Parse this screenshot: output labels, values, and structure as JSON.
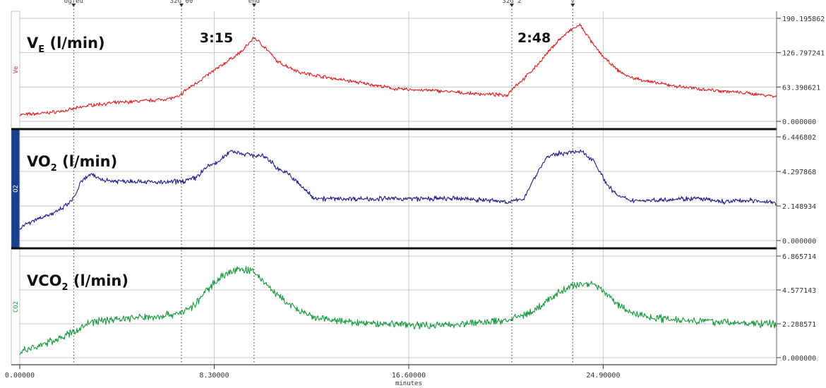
{
  "chart_data": {
    "type": "line",
    "xlabel": "minutes",
    "x_ticks": [
      "0.00000",
      "8.30000",
      "16.60000",
      "24.90000"
    ],
    "x_range": [
      0,
      32.3
    ],
    "grid": true,
    "events": [
      {
        "x": 2.3,
        "label": "ogfeu"
      },
      {
        "x": 6.9,
        "label": "32G 00"
      },
      {
        "x": 10.0,
        "label": "end"
      },
      {
        "x": 21.0,
        "label": "32G 2"
      },
      {
        "x": 23.6,
        "label": "v"
      }
    ],
    "annotations": [
      {
        "text": "3:15",
        "x": 9.9
      },
      {
        "text": "2:48",
        "x": 23.4
      }
    ],
    "series": [
      {
        "name": "VE (l/min)",
        "label_main": "V",
        "label_sub": "E",
        "label_unit": " (l/min)",
        "side_label": "Ve",
        "color": "#e02020",
        "side_color": "#cc3333",
        "ylim": [
          0,
          190.195862
        ],
        "y_ticks": [
          "190.195862",
          "126.797241",
          "63.398621",
          "0.000000"
        ],
        "x": [
          0,
          1,
          2,
          2.5,
          3,
          4,
          5,
          6,
          6.8,
          7,
          7.5,
          8,
          8.5,
          9,
          9.5,
          10,
          10.5,
          11,
          11.5,
          12,
          13,
          14,
          15,
          16,
          17,
          18,
          19,
          20,
          20.8,
          21,
          21.5,
          22,
          22.5,
          23,
          23.5,
          23.9,
          24.2,
          24.5,
          25,
          25.5,
          26,
          27,
          28,
          29,
          30,
          31,
          32,
          32.3
        ],
        "y": [
          12,
          15,
          20,
          25,
          30,
          34,
          37,
          40,
          45,
          55,
          70,
          85,
          100,
          115,
          130,
          155,
          135,
          110,
          100,
          90,
          82,
          75,
          68,
          60,
          58,
          56,
          52,
          50,
          48,
          60,
          78,
          100,
          125,
          150,
          168,
          178,
          160,
          140,
          115,
          95,
          82,
          72,
          65,
          60,
          56,
          52,
          48,
          45
        ]
      },
      {
        "name": "VO2 (l/min)",
        "label_main": "VO",
        "label_sub": "2",
        "label_unit": " (l/min)",
        "side_label": "O2",
        "color": "#1e1e8c",
        "side_color": "#ffffff",
        "ylim": [
          0,
          6.446802
        ],
        "y_ticks": [
          "6.446802",
          "4.297868",
          "2.148934",
          "0.000000"
        ],
        "x": [
          0,
          0.5,
          1,
          1.5,
          2,
          2.3,
          2.6,
          3,
          3.5,
          4,
          5,
          6,
          7,
          7.5,
          8,
          8.5,
          9,
          9.5,
          10,
          10.5,
          11,
          11.5,
          12,
          12.5,
          13,
          14,
          15,
          16,
          17,
          18,
          19,
          20,
          21,
          21.5,
          22,
          22.5,
          23,
          23.5,
          24,
          24.5,
          25,
          25.5,
          26,
          27,
          28,
          29,
          30,
          31,
          32,
          32.3
        ],
        "y": [
          0.8,
          1.2,
          1.5,
          1.7,
          2.2,
          2.6,
          3.6,
          4.1,
          3.8,
          3.7,
          3.7,
          3.6,
          3.7,
          3.9,
          4.6,
          4.9,
          5.6,
          5.4,
          5.3,
          5.2,
          4.5,
          4.1,
          3.4,
          2.7,
          2.6,
          2.6,
          2.6,
          2.6,
          2.6,
          2.6,
          2.6,
          2.5,
          2.4,
          2.6,
          4.0,
          5.2,
          5.4,
          5.5,
          5.5,
          5.0,
          3.6,
          2.8,
          2.5,
          2.5,
          2.6,
          2.6,
          2.4,
          2.5,
          2.4,
          2.3
        ]
      },
      {
        "name": "VCO2 (l/min)",
        "label_main": "VCO",
        "label_sub": "2",
        "label_unit": " (l/min)",
        "side_label": "CO2",
        "color": "#1a9a40",
        "side_color": "#1a9a40",
        "ylim": [
          0,
          6.865714
        ],
        "y_ticks": [
          "6.865714",
          "4.577143",
          "2.288571",
          "0.000000"
        ],
        "x": [
          0,
          0.5,
          1,
          1.5,
          2,
          2.5,
          3,
          4,
          5,
          6,
          7,
          7.5,
          8,
          8.5,
          9,
          9.5,
          10,
          10.5,
          11,
          11.5,
          12,
          12.5,
          13,
          14,
          15,
          16,
          17,
          18,
          19,
          20,
          21,
          22,
          22.5,
          23,
          23.5,
          24,
          24.5,
          25,
          25.5,
          26,
          27,
          28,
          29,
          30,
          31,
          32,
          32.3
        ],
        "y": [
          0.4,
          0.6,
          0.9,
          1.2,
          1.5,
          1.9,
          2.4,
          2.6,
          2.7,
          2.8,
          3.1,
          3.6,
          4.6,
          5.4,
          5.8,
          6.0,
          5.8,
          5.0,
          4.2,
          3.6,
          3.1,
          2.7,
          2.6,
          2.4,
          2.3,
          2.3,
          2.2,
          2.2,
          2.3,
          2.4,
          2.6,
          3.2,
          3.8,
          4.4,
          4.8,
          5.0,
          5.0,
          4.4,
          3.6,
          3.1,
          2.7,
          2.6,
          2.5,
          2.4,
          2.3,
          2.3,
          2.2
        ]
      }
    ]
  }
}
